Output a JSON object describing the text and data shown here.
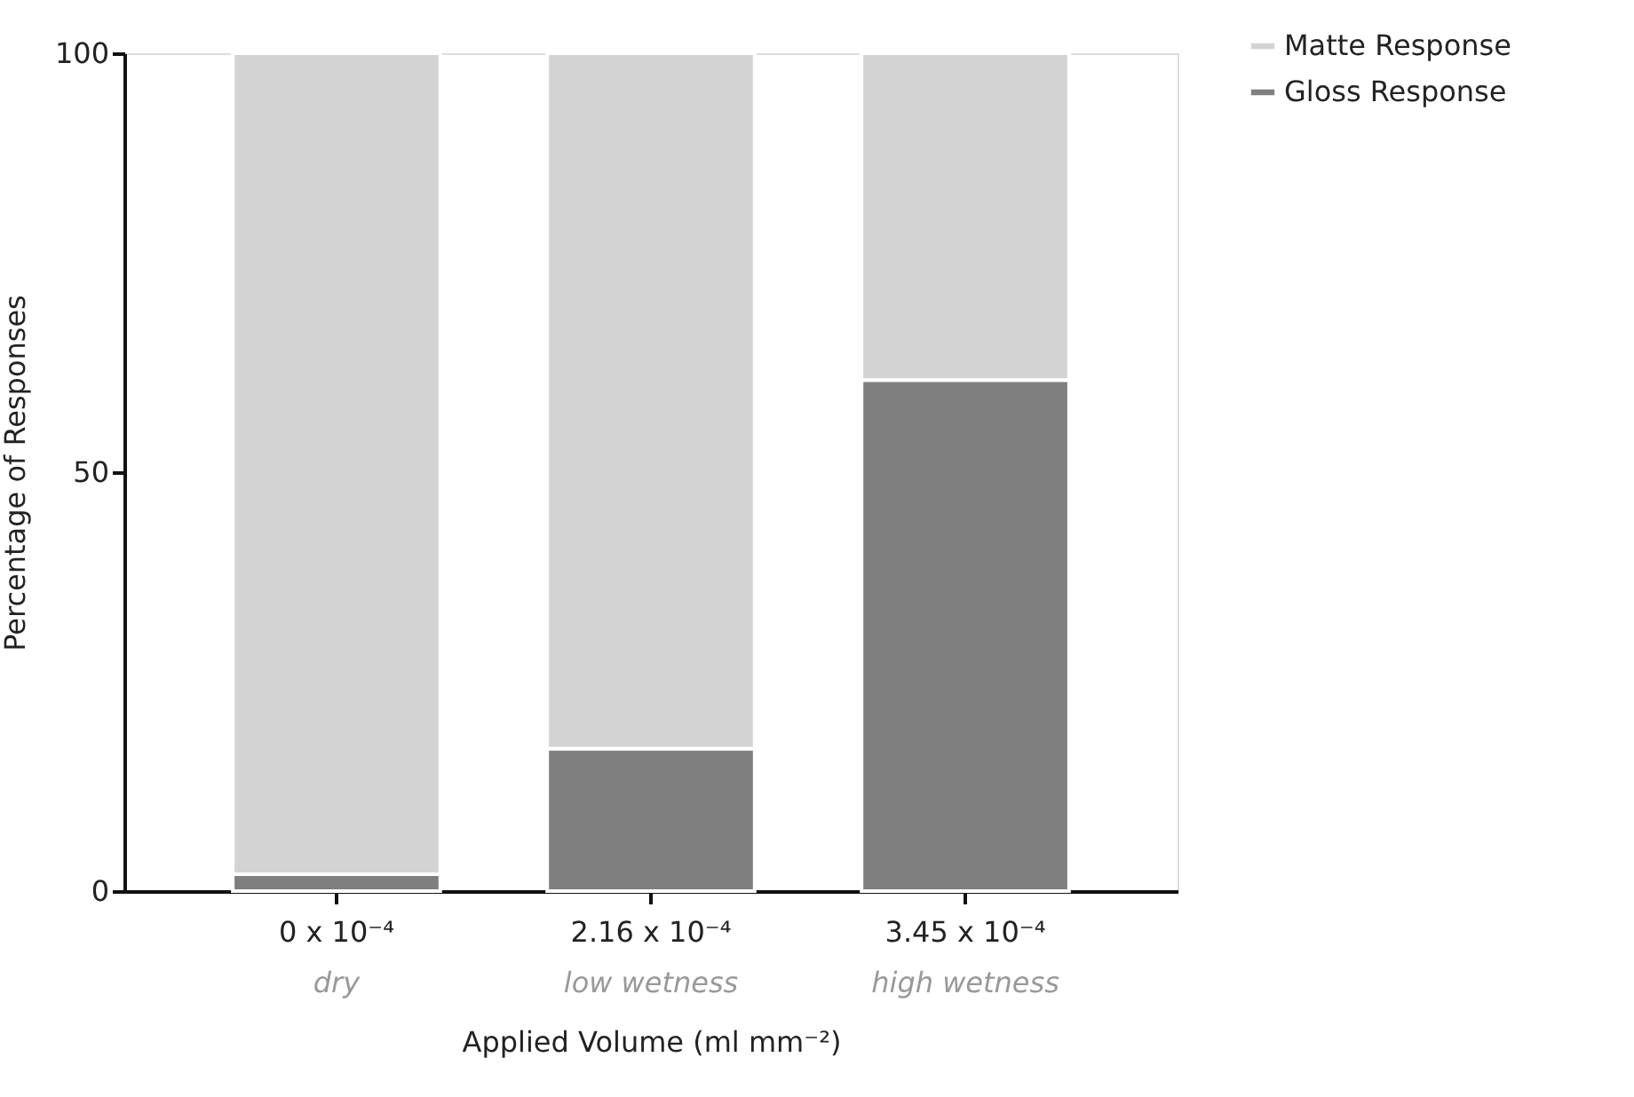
{
  "chart_data": {
    "type": "bar",
    "stacked": true,
    "categories": [
      "0 x 10⁻⁴",
      "2.16 x 10⁻⁴",
      "3.45 x 10⁻⁴"
    ],
    "xlabel": "Applied Volume (ml mm⁻²)",
    "ylabel": "Percentage of Responses",
    "annotations": [
      "dry",
      "low wetness",
      "high wetness"
    ],
    "series": [
      {
        "name": "Gloss Response",
        "color": "#7f7f7f",
        "values": [
          2,
          17,
          61
        ]
      },
      {
        "name": "Matte Response",
        "color": "#d3d3d3",
        "values": [
          98,
          83,
          39
        ]
      }
    ],
    "ylim": [
      0,
      100
    ],
    "yticks": [
      0,
      50,
      100
    ],
    "grid": false,
    "legend": "top right"
  }
}
